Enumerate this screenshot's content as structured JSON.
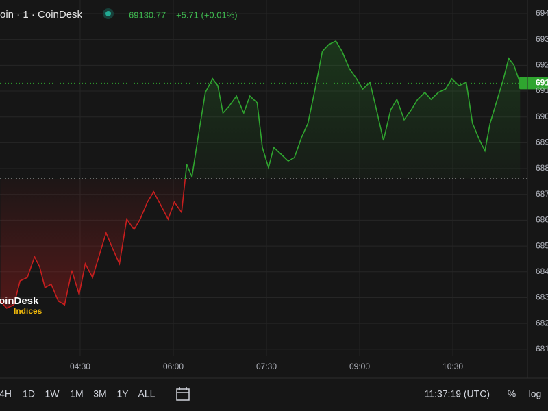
{
  "chart_data": {
    "type": "baseline",
    "title": "oin · 1 · CoinDesk",
    "last": 69130.77,
    "change": "+5.71 (+0.01%)",
    "last_label": "691",
    "baseline": 68761,
    "up_color": "#2fa52f",
    "down_color": "#c81e1e",
    "grid": true,
    "x": [
      193,
      199,
      206,
      212,
      219,
      226,
      231,
      236,
      242,
      249,
      255,
      262,
      269,
      275,
      282,
      289,
      295,
      302,
      308,
      315,
      322,
      328,
      335,
      341,
      348,
      355,
      361,
      368,
      373,
      378,
      385,
      391,
      398,
      403,
      408,
      414,
      421,
      428,
      434,
      441,
      446,
      452,
      457,
      464,
      471,
      477,
      484,
      490,
      497,
      504,
      510,
      517,
      523,
      530,
      537,
      543,
      550,
      557,
      563,
      570,
      576,
      583,
      590,
      596,
      603,
      609,
      616,
      623,
      629,
      636,
      643,
      649,
      656,
      661,
      666,
      672,
      679,
      684,
      689,
      695
    ],
    "values": [
      68286,
      68259,
      68272,
      68365,
      68378,
      68458,
      68418,
      68339,
      68352,
      68286,
      68272,
      68405,
      68312,
      68431,
      68378,
      68471,
      68551,
      68485,
      68431,
      68604,
      68564,
      68604,
      68670,
      68710,
      68657,
      68604,
      68670,
      68630,
      68816,
      68768,
      68949,
      69095,
      69148,
      69121,
      69015,
      69042,
      69081,
      69015,
      69081,
      69055,
      68882,
      68803,
      68882,
      68856,
      68829,
      68843,
      68922,
      68975,
      69108,
      69254,
      69280,
      69294,
      69254,
      69188,
      69148,
      69108,
      69134,
      69015,
      68909,
      69028,
      69068,
      68989,
      69028,
      69068,
      69095,
      69068,
      69095,
      69108,
      69148,
      69121,
      69134,
      68975,
      68909,
      68869,
      68975,
      69055,
      69148,
      69227,
      69201,
      69131
    ],
    "xlim": [
      192.6,
      702.1
    ],
    "xticks": [
      {
        "value": 270,
        "label": "04:30"
      },
      {
        "value": 360,
        "label": "06:00"
      },
      {
        "value": 450,
        "label": "07:30"
      },
      {
        "value": 540,
        "label": "09:00"
      },
      {
        "value": 630,
        "label": "10:30"
      }
    ],
    "ylim": [
      68073,
      69453
    ],
    "yticks": [
      {
        "value": 69400,
        "label": "694"
      },
      {
        "value": 69300,
        "label": "693"
      },
      {
        "value": 69200,
        "label": "692"
      },
      {
        "value": 69100,
        "label": "691"
      },
      {
        "value": 69000,
        "label": "690"
      },
      {
        "value": 68900,
        "label": "689"
      },
      {
        "value": 68800,
        "label": "688"
      },
      {
        "value": 68700,
        "label": "687"
      },
      {
        "value": 68600,
        "label": "686"
      },
      {
        "value": 68500,
        "label": "685"
      },
      {
        "value": 68400,
        "label": "684"
      },
      {
        "value": 68300,
        "label": "683"
      },
      {
        "value": 68200,
        "label": "682"
      },
      {
        "value": 68100,
        "label": "681"
      }
    ]
  },
  "watermark": {
    "brand": "oinDesk",
    "sub": "Indices"
  },
  "toolbar": {
    "ranges": [
      "4H",
      "1D",
      "1W",
      "1M",
      "3M",
      "1Y",
      "ALL"
    ],
    "time": "11:37:19 (UTC)",
    "percent": "%",
    "log": "log"
  }
}
